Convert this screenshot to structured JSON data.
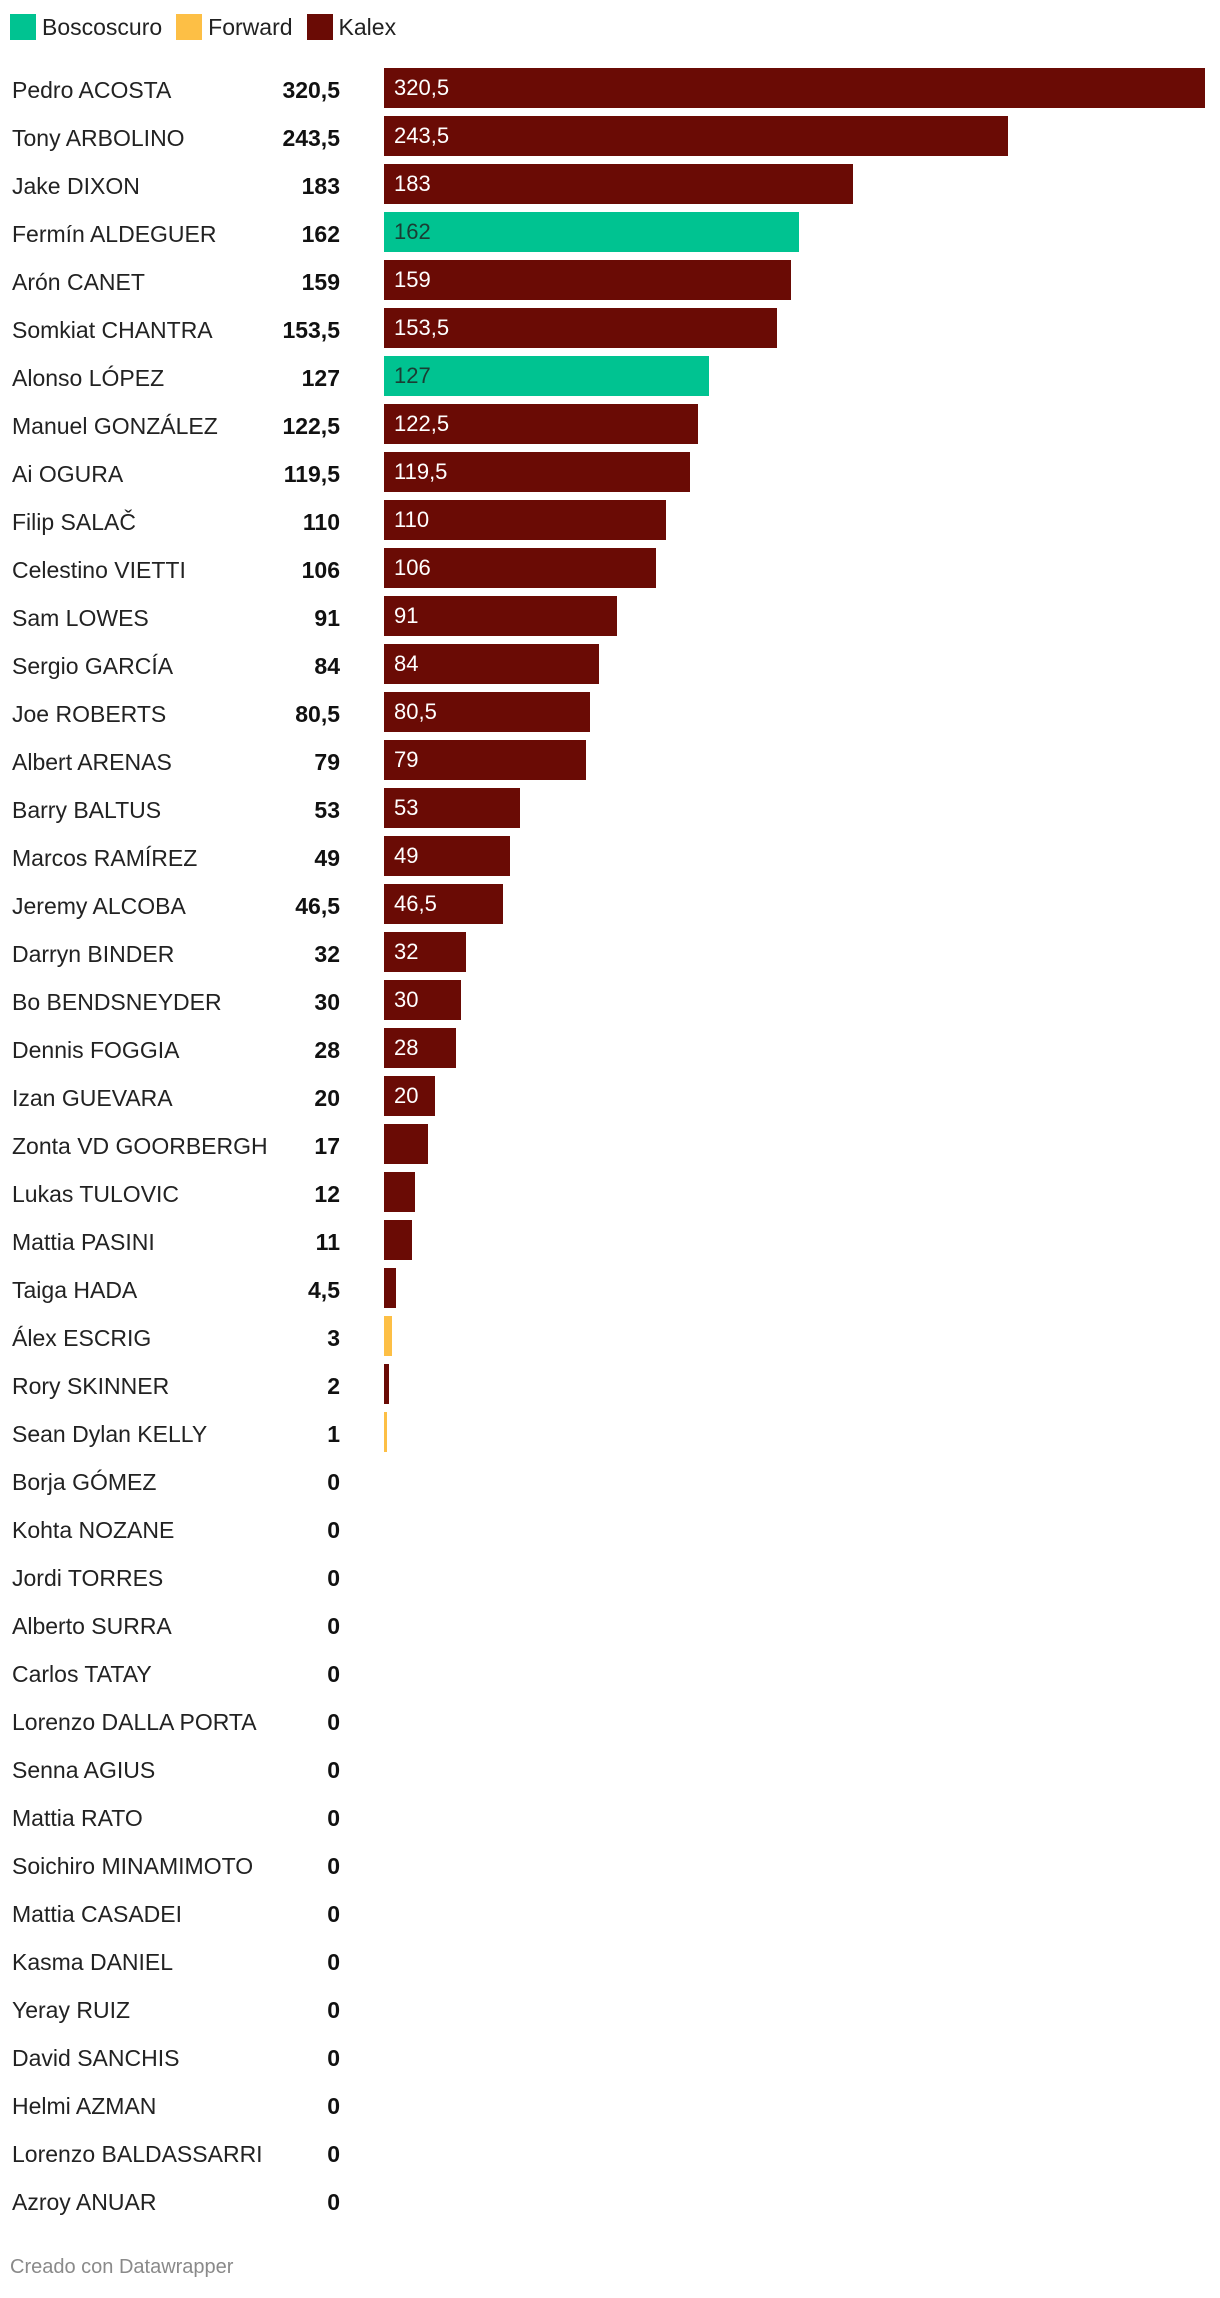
{
  "chart_data": {
    "type": "bar",
    "orientation": "horizontal",
    "legend": [
      {
        "name": "Boscoscuro",
        "color": "#00c391"
      },
      {
        "name": "Forward",
        "color": "#fdbf45"
      },
      {
        "name": "Kalex",
        "color": "#6a0b05"
      }
    ],
    "legend_placement": "top-left",
    "xlim": [
      0,
      320.5
    ],
    "grid": false,
    "riders": [
      {
        "name": "Pedro ACOSTA",
        "points": "320,5",
        "value": 320.5,
        "team": "Kalex"
      },
      {
        "name": "Tony ARBOLINO",
        "points": "243,5",
        "value": 243.5,
        "team": "Kalex"
      },
      {
        "name": "Jake DIXON",
        "points": "183",
        "value": 183,
        "team": "Kalex"
      },
      {
        "name": "Fermín ALDEGUER",
        "points": "162",
        "value": 162,
        "team": "Boscoscuro"
      },
      {
        "name": "Arón CANET",
        "points": "159",
        "value": 159,
        "team": "Kalex"
      },
      {
        "name": "Somkiat CHANTRA",
        "points": "153,5",
        "value": 153.5,
        "team": "Kalex"
      },
      {
        "name": "Alonso LÓPEZ",
        "points": "127",
        "value": 127,
        "team": "Boscoscuro"
      },
      {
        "name": "Manuel GONZÁLEZ",
        "points": "122,5",
        "value": 122.5,
        "team": "Kalex"
      },
      {
        "name": "Ai OGURA",
        "points": "119,5",
        "value": 119.5,
        "team": "Kalex"
      },
      {
        "name": "Filip SALAČ",
        "points": "110",
        "value": 110,
        "team": "Kalex"
      },
      {
        "name": "Celestino VIETTI",
        "points": "106",
        "value": 106,
        "team": "Kalex"
      },
      {
        "name": "Sam LOWES",
        "points": "91",
        "value": 91,
        "team": "Kalex"
      },
      {
        "name": "Sergio GARCÍA",
        "points": "84",
        "value": 84,
        "team": "Kalex"
      },
      {
        "name": "Joe ROBERTS",
        "points": "80,5",
        "value": 80.5,
        "team": "Kalex"
      },
      {
        "name": "Albert ARENAS",
        "points": "79",
        "value": 79,
        "team": "Kalex"
      },
      {
        "name": "Barry BALTUS",
        "points": "53",
        "value": 53,
        "team": "Kalex"
      },
      {
        "name": "Marcos RAMÍREZ",
        "points": "49",
        "value": 49,
        "team": "Kalex"
      },
      {
        "name": "Jeremy ALCOBA",
        "points": "46,5",
        "value": 46.5,
        "team": "Kalex"
      },
      {
        "name": "Darryn BINDER",
        "points": "32",
        "value": 32,
        "team": "Kalex"
      },
      {
        "name": "Bo BENDSNEYDER",
        "points": "30",
        "value": 30,
        "team": "Kalex"
      },
      {
        "name": "Dennis FOGGIA",
        "points": "28",
        "value": 28,
        "team": "Kalex"
      },
      {
        "name": "Izan GUEVARA",
        "points": "20",
        "value": 20,
        "team": "Kalex"
      },
      {
        "name": "Zonta VD GOORBERGH",
        "points": "17",
        "value": 17,
        "team": "Kalex"
      },
      {
        "name": "Lukas TULOVIC",
        "points": "12",
        "value": 12,
        "team": "Kalex"
      },
      {
        "name": "Mattia PASINI",
        "points": "11",
        "value": 11,
        "team": "Kalex"
      },
      {
        "name": "Taiga HADA",
        "points": "4,5",
        "value": 4.5,
        "team": "Kalex"
      },
      {
        "name": "Álex ESCRIG",
        "points": "3",
        "value": 3,
        "team": "Forward"
      },
      {
        "name": "Rory SKINNER",
        "points": "2",
        "value": 2,
        "team": "Kalex"
      },
      {
        "name": "Sean Dylan KELLY",
        "points": "1",
        "value": 1,
        "team": "Forward"
      },
      {
        "name": "Borja GÓMEZ",
        "points": "0",
        "value": 0,
        "team": "Kalex"
      },
      {
        "name": "Kohta NOZANE",
        "points": "0",
        "value": 0,
        "team": "Kalex"
      },
      {
        "name": "Jordi TORRES",
        "points": "0",
        "value": 0,
        "team": "Kalex"
      },
      {
        "name": "Alberto SURRA",
        "points": "0",
        "value": 0,
        "team": "Kalex"
      },
      {
        "name": "Carlos TATAY",
        "points": "0",
        "value": 0,
        "team": "Kalex"
      },
      {
        "name": "Lorenzo DALLA PORTA",
        "points": "0",
        "value": 0,
        "team": "Kalex"
      },
      {
        "name": "Senna AGIUS",
        "points": "0",
        "value": 0,
        "team": "Kalex"
      },
      {
        "name": "Mattia RATO",
        "points": "0",
        "value": 0,
        "team": "Kalex"
      },
      {
        "name": "Soichiro MINAMIMOTO",
        "points": "0",
        "value": 0,
        "team": "Kalex"
      },
      {
        "name": "Mattia CASADEI",
        "points": "0",
        "value": 0,
        "team": "Kalex"
      },
      {
        "name": "Kasma DANIEL",
        "points": "0",
        "value": 0,
        "team": "Kalex"
      },
      {
        "name": "Yeray RUIZ",
        "points": "0",
        "value": 0,
        "team": "Kalex"
      },
      {
        "name": "David SANCHIS",
        "points": "0",
        "value": 0,
        "team": "Kalex"
      },
      {
        "name": "Helmi AZMAN",
        "points": "0",
        "value": 0,
        "team": "Kalex"
      },
      {
        "name": "Lorenzo BALDASSARRI",
        "points": "0",
        "value": 0,
        "team": "Kalex"
      },
      {
        "name": "Azroy ANUAR",
        "points": "0",
        "value": 0,
        "team": "Kalex"
      }
    ]
  },
  "footer": {
    "credit": "Creado con Datawrapper"
  }
}
